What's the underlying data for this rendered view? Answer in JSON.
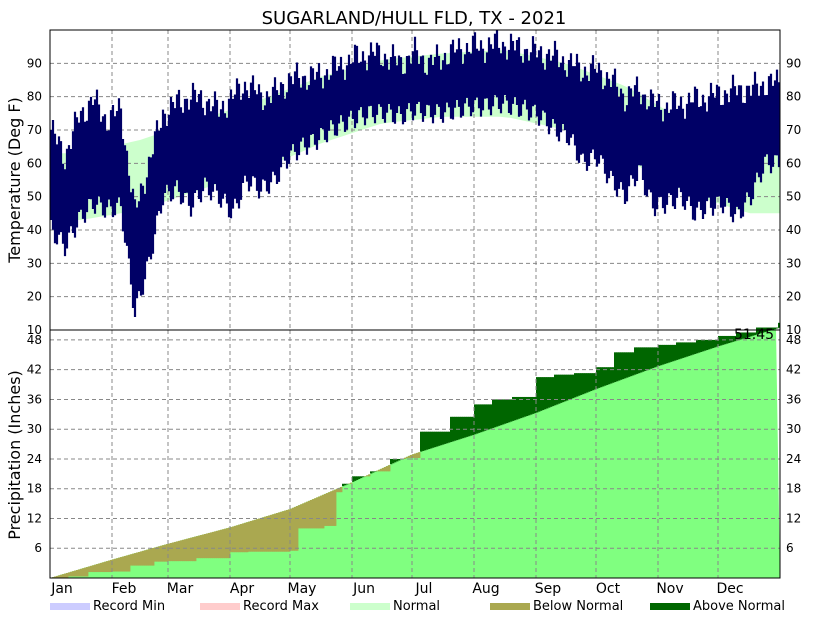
{
  "chart_data": {
    "type": "area",
    "title": "SUGARLAND/HULL FLD, TX - 2021",
    "x_ticks": [
      "Jan",
      "Feb",
      "Mar",
      "Apr",
      "May",
      "Jun",
      "Jul",
      "Aug",
      "Sep",
      "Oct",
      "Nov",
      "Dec"
    ],
    "temperature_panel": {
      "ylabel": "Temperature (Deg F)",
      "ylim": [
        10,
        100
      ],
      "y_ticks": [
        10,
        20,
        30,
        40,
        50,
        60,
        70,
        80,
        90
      ],
      "grid": true,
      "normal_band_monthly": {
        "months": [
          "Jan",
          "Feb",
          "Mar",
          "Apr",
          "May",
          "Jun",
          "Jul",
          "Aug",
          "Sep",
          "Oct",
          "Nov",
          "Dec"
        ],
        "normal_high": [
          63,
          67,
          73,
          79,
          86,
          91,
          93,
          94,
          90,
          83,
          72,
          65
        ],
        "normal_low": [
          43,
          46,
          52,
          58,
          66,
          72,
          74,
          74,
          70,
          61,
          51,
          45
        ]
      },
      "daily_range_weekly_approx": {
        "weeks": [
          "Jan 1",
          "Jan 8",
          "Jan 15",
          "Jan 22",
          "Jan 29",
          "Feb 5",
          "Feb 12",
          "Feb 19",
          "Feb 26",
          "Mar 5",
          "Mar 12",
          "Mar 19",
          "Mar 26",
          "Apr 2",
          "Apr 9",
          "Apr 16",
          "Apr 23",
          "Apr 30",
          "May 7",
          "May 14",
          "May 21",
          "May 28",
          "Jun 4",
          "Jun 11",
          "Jun 18",
          "Jun 25",
          "Jul 2",
          "Jul 9",
          "Jul 16",
          "Jul 23",
          "Jul 30",
          "Aug 6",
          "Aug 13",
          "Aug 20",
          "Aug 27",
          "Sep 3",
          "Sep 10",
          "Sep 17",
          "Sep 24",
          "Oct 1",
          "Oct 8",
          "Oct 15",
          "Oct 22",
          "Oct 29",
          "Nov 5",
          "Nov 12",
          "Nov 19",
          "Nov 26",
          "Dec 3",
          "Dec 10",
          "Dec 17",
          "Dec 24"
        ],
        "high": [
          70,
          62,
          74,
          79,
          73,
          76,
          45,
          60,
          75,
          78,
          80,
          79,
          76,
          80,
          84,
          80,
          81,
          85,
          86,
          86,
          88,
          90,
          92,
          93,
          92,
          90,
          93,
          90,
          92,
          94,
          95,
          95,
          96,
          95,
          94,
          93,
          92,
          90,
          88,
          88,
          85,
          80,
          82,
          78,
          77,
          78,
          79,
          80,
          81,
          82,
          82,
          84
        ],
        "low": [
          40,
          35,
          43,
          48,
          46,
          47,
          15,
          30,
          50,
          52,
          47,
          53,
          50,
          45,
          55,
          52,
          55,
          62,
          65,
          67,
          70,
          72,
          74,
          75,
          75,
          74,
          76,
          75,
          75,
          76,
          77,
          77,
          78,
          77,
          76,
          74,
          70,
          68,
          60,
          62,
          55,
          50,
          58,
          47,
          48,
          50,
          45,
          47,
          48,
          44,
          50,
          60
        ]
      }
    },
    "precipitation_panel": {
      "ylabel": "Precipitation (Inches)",
      "ylim": [
        0,
        50
      ],
      "y_ticks": [
        6,
        12,
        18,
        24,
        30,
        36,
        42,
        48
      ],
      "grid": true,
      "annotation": "51.45",
      "normal_cumulative": {
        "months": [
          "Jan 1",
          "Feb 1",
          "Mar 1",
          "Apr 1",
          "May 1",
          "Jun 1",
          "Jul 1",
          "Aug 1",
          "Sep 1",
          "Oct 1",
          "Nov 1",
          "Dec 1",
          "Dec 31"
        ],
        "values": [
          0,
          3.7,
          6.9,
          10.2,
          13.9,
          19.3,
          24.9,
          28.9,
          33.3,
          38.1,
          42.7,
          46.7,
          50.5
        ]
      },
      "observed_cumulative": {
        "dates": [
          "Jan 1",
          "Jan 10",
          "Jan 20",
          "Feb 1",
          "Feb 10",
          "Feb 22",
          "Mar 1",
          "Mar 15",
          "Apr 1",
          "Apr 10",
          "Apr 20",
          "May 1",
          "May 5",
          "May 10",
          "May 18",
          "May 24",
          "May 27",
          "Jun 1",
          "Jun 10",
          "Jun 20",
          "Jun 28",
          "Jul 1",
          "Jul 5",
          "Jul 20",
          "Aug 1",
          "Aug 10",
          "Aug 20",
          "Sep 1",
          "Sep 10",
          "Sep 20",
          "Oct 1",
          "Oct 10",
          "Oct 20",
          "Nov 1",
          "Nov 10",
          "Nov 20",
          "Dec 1",
          "Dec 10",
          "Dec 20",
          "Dec 31"
        ],
        "values": [
          0,
          0.3,
          1.2,
          1.3,
          2.5,
          3.3,
          3.4,
          4.0,
          5.2,
          5.3,
          5.3,
          5.5,
          10.0,
          10.0,
          10.5,
          17.3,
          19.0,
          20.5,
          21.5,
          24.0,
          24.2,
          24.2,
          29.5,
          32.5,
          35.0,
          36.0,
          36.5,
          40.5,
          41.0,
          41.3,
          42.5,
          45.5,
          46.5,
          47.0,
          47.5,
          48.0,
          48.8,
          49.5,
          50.5,
          51.45
        ]
      }
    },
    "legend": [
      {
        "label": "Record Min",
        "color": "#ccccff"
      },
      {
        "label": "Record Max",
        "color": "#ffcccc"
      },
      {
        "label": "Normal",
        "color": "#ccffcc"
      },
      {
        "label": "Below Normal",
        "color": "#aaa850"
      },
      {
        "label": "Above Normal",
        "color": "#006600"
      }
    ],
    "colors": {
      "temperature_bars": "#000066",
      "normal_band": "#ccffcc",
      "normal_precip": "#80ff80",
      "above_normal": "#006600",
      "below_normal": "#aaa850"
    }
  }
}
